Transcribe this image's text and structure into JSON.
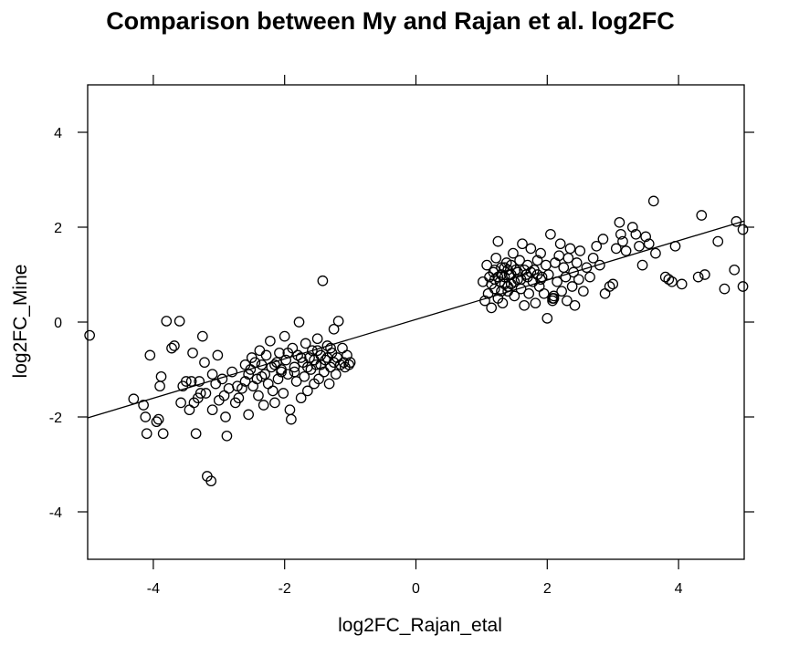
{
  "chart_data": {
    "type": "scatter",
    "title": "Comparison between My and Rajan et al. log2FC",
    "xlabel": "log2FC_Rajan_etal",
    "ylabel": "log2FC_Mine",
    "xlim": [
      -5,
      5
    ],
    "ylim": [
      -5,
      5
    ],
    "xticks": [
      -4,
      -2,
      0,
      2,
      4
    ],
    "yticks": [
      -4,
      -2,
      0,
      2,
      4
    ],
    "grid": false,
    "legend": null,
    "marker": "open-circle",
    "regression_line": {
      "slope": 0.415,
      "intercept": 0.055,
      "x_range": [
        -5,
        5
      ]
    },
    "points": [
      [
        -4.97,
        -0.28
      ],
      [
        -4.3,
        -1.62
      ],
      [
        -4.15,
        -1.75
      ],
      [
        -4.12,
        -2.0
      ],
      [
        -4.1,
        -2.35
      ],
      [
        -4.05,
        -0.7
      ],
      [
        -3.95,
        -2.1
      ],
      [
        -3.92,
        -2.05
      ],
      [
        -3.9,
        -1.35
      ],
      [
        -3.88,
        -1.15
      ],
      [
        -3.85,
        -2.35
      ],
      [
        -3.8,
        0.02
      ],
      [
        -3.72,
        -0.55
      ],
      [
        -3.68,
        -0.5
      ],
      [
        -3.6,
        0.02
      ],
      [
        -3.58,
        -1.7
      ],
      [
        -3.55,
        -1.35
      ],
      [
        -3.5,
        -1.25
      ],
      [
        -3.45,
        -1.85
      ],
      [
        -3.42,
        -1.25
      ],
      [
        -3.4,
        -0.65
      ],
      [
        -3.38,
        -1.7
      ],
      [
        -3.35,
        -2.35
      ],
      [
        -3.32,
        -1.6
      ],
      [
        -3.3,
        -1.25
      ],
      [
        -3.28,
        -1.5
      ],
      [
        -3.25,
        -0.3
      ],
      [
        -3.22,
        -0.85
      ],
      [
        -3.2,
        -1.5
      ],
      [
        -3.18,
        -3.25
      ],
      [
        -3.12,
        -3.35
      ],
      [
        -3.1,
        -1.85
      ],
      [
        -3.1,
        -1.1
      ],
      [
        -3.05,
        -1.3
      ],
      [
        -3.02,
        -0.7
      ],
      [
        -3.0,
        -1.65
      ],
      [
        -2.95,
        -1.2
      ],
      [
        -2.92,
        -1.55
      ],
      [
        -2.9,
        -2.0
      ],
      [
        -2.88,
        -2.4
      ],
      [
        -2.85,
        -1.4
      ],
      [
        -2.8,
        -1.05
      ],
      [
        -2.75,
        -1.7
      ],
      [
        -2.72,
        -1.35
      ],
      [
        -2.7,
        -1.6
      ],
      [
        -2.65,
        -1.4
      ],
      [
        -2.6,
        -1.25
      ],
      [
        -2.55,
        -1.95
      ],
      [
        -2.52,
        -1.0
      ],
      [
        -2.5,
        -0.75
      ],
      [
        -2.48,
        -1.35
      ],
      [
        -2.45,
        -0.85
      ],
      [
        -2.42,
        -1.2
      ],
      [
        -2.4,
        -1.55
      ],
      [
        -2.38,
        -0.6
      ],
      [
        -2.35,
        -0.9
      ],
      [
        -2.32,
        -1.75
      ],
      [
        -2.3,
        -1.1
      ],
      [
        -2.28,
        -0.7
      ],
      [
        -2.25,
        -1.3
      ],
      [
        -2.22,
        -0.4
      ],
      [
        -2.2,
        -0.95
      ],
      [
        -2.18,
        -1.45
      ],
      [
        -2.15,
        -1.7
      ],
      [
        -2.12,
        -0.85
      ],
      [
        -2.1,
        -1.2
      ],
      [
        -2.08,
        -0.65
      ],
      [
        -2.05,
        -1.0
      ],
      [
        -2.02,
        -1.5
      ],
      [
        -2.0,
        -0.3
      ],
      [
        -1.98,
        -0.8
      ],
      [
        -1.95,
        -1.1
      ],
      [
        -1.92,
        -1.85
      ],
      [
        -1.9,
        -2.05
      ],
      [
        -1.88,
        -0.55
      ],
      [
        -1.85,
        -0.95
      ],
      [
        -1.82,
        -1.25
      ],
      [
        -1.8,
        -0.7
      ],
      [
        -1.78,
        0.0
      ],
      [
        -1.75,
        -1.6
      ],
      [
        -1.72,
        -0.85
      ],
      [
        -1.7,
        -1.15
      ],
      [
        -1.68,
        -0.45
      ],
      [
        -1.65,
        -1.45
      ],
      [
        -1.62,
        -0.75
      ],
      [
        -1.6,
        -1.0
      ],
      [
        -1.58,
        -0.6
      ],
      [
        -1.55,
        -1.3
      ],
      [
        -1.52,
        -0.9
      ],
      [
        -1.5,
        -0.35
      ],
      [
        -1.48,
        -1.2
      ],
      [
        -1.45,
        -0.7
      ],
      [
        -1.42,
        0.87
      ],
      [
        -1.4,
        -1.05
      ],
      [
        -1.38,
        -0.8
      ],
      [
        -1.35,
        -0.5
      ],
      [
        -1.32,
        -1.3
      ],
      [
        -1.3,
        -0.95
      ],
      [
        -1.28,
        -0.65
      ],
      [
        -1.25,
        -0.15
      ],
      [
        -1.22,
        -1.1
      ],
      [
        -1.2,
        -0.75
      ],
      [
        -1.18,
        0.02
      ],
      [
        -1.15,
        -0.9
      ],
      [
        -1.12,
        -0.55
      ],
      [
        -1.1,
        -0.85
      ],
      [
        -1.08,
        -0.95
      ],
      [
        -1.05,
        -0.7
      ],
      [
        -1.02,
        -0.9
      ],
      [
        -1.0,
        -0.85
      ],
      [
        -2.6,
        -0.9
      ],
      [
        -2.55,
        -1.1
      ],
      [
        -2.35,
        -1.15
      ],
      [
        -2.15,
        -0.9
      ],
      [
        -1.95,
        -0.65
      ],
      [
        -1.75,
        -0.75
      ],
      [
        -1.55,
        -0.8
      ],
      [
        -1.45,
        -0.9
      ],
      [
        -1.35,
        -0.75
      ],
      [
        -1.25,
        -0.85
      ],
      [
        -1.65,
        -0.95
      ],
      [
        -1.85,
        -1.05
      ],
      [
        -2.05,
        -1.05
      ],
      [
        -1.5,
        -0.6
      ],
      [
        -1.3,
        -0.55
      ],
      [
        1.02,
        0.85
      ],
      [
        1.05,
        0.45
      ],
      [
        1.08,
        1.2
      ],
      [
        1.1,
        0.6
      ],
      [
        1.12,
        0.95
      ],
      [
        1.15,
        0.3
      ],
      [
        1.18,
        1.05
      ],
      [
        1.2,
        0.7
      ],
      [
        1.22,
        1.35
      ],
      [
        1.25,
        1.7
      ],
      [
        1.25,
        0.5
      ],
      [
        1.28,
        0.85
      ],
      [
        1.3,
        1.15
      ],
      [
        1.32,
        0.4
      ],
      [
        1.35,
        0.95
      ],
      [
        1.38,
        1.25
      ],
      [
        1.4,
        0.65
      ],
      [
        1.42,
        1.0
      ],
      [
        1.45,
        0.8
      ],
      [
        1.48,
        1.45
      ],
      [
        1.5,
        0.55
      ],
      [
        1.52,
        1.1
      ],
      [
        1.55,
        0.9
      ],
      [
        1.58,
        1.3
      ],
      [
        1.6,
        0.7
      ],
      [
        1.62,
        1.65
      ],
      [
        1.65,
        0.35
      ],
      [
        1.68,
        1.0
      ],
      [
        1.7,
        1.2
      ],
      [
        1.72,
        0.6
      ],
      [
        1.75,
        1.55
      ],
      [
        1.78,
        0.85
      ],
      [
        1.8,
        1.1
      ],
      [
        1.82,
        0.4
      ],
      [
        1.85,
        1.3
      ],
      [
        1.88,
        0.75
      ],
      [
        1.9,
        1.45
      ],
      [
        1.92,
        0.95
      ],
      [
        1.95,
        0.6
      ],
      [
        1.98,
        1.2
      ],
      [
        2.0,
        0.08
      ],
      [
        2.02,
        1.0
      ],
      [
        2.05,
        1.85
      ],
      [
        2.08,
        0.5
      ],
      [
        2.1,
        0.5
      ],
      [
        2.12,
        1.25
      ],
      [
        2.15,
        0.85
      ],
      [
        2.18,
        1.4
      ],
      [
        2.2,
        1.65
      ],
      [
        2.22,
        0.65
      ],
      [
        2.25,
        1.15
      ],
      [
        2.28,
        0.95
      ],
      [
        2.3,
        0.45
      ],
      [
        2.32,
        1.35
      ],
      [
        2.35,
        1.55
      ],
      [
        2.38,
        0.75
      ],
      [
        2.4,
        1.05
      ],
      [
        2.42,
        0.35
      ],
      [
        2.45,
        1.25
      ],
      [
        2.48,
        0.9
      ],
      [
        2.5,
        1.5
      ],
      [
        2.55,
        0.65
      ],
      [
        2.6,
        1.15
      ],
      [
        2.65,
        0.95
      ],
      [
        2.7,
        1.35
      ],
      [
        2.75,
        1.6
      ],
      [
        2.8,
        1.2
      ],
      [
        2.85,
        1.75
      ],
      [
        2.88,
        0.6
      ],
      [
        2.95,
        0.75
      ],
      [
        3.0,
        0.8
      ],
      [
        3.05,
        1.55
      ],
      [
        3.1,
        2.1
      ],
      [
        3.12,
        1.85
      ],
      [
        3.15,
        1.7
      ],
      [
        3.2,
        1.5
      ],
      [
        3.3,
        2.0
      ],
      [
        3.35,
        1.85
      ],
      [
        3.4,
        1.6
      ],
      [
        3.45,
        1.2
      ],
      [
        3.5,
        1.8
      ],
      [
        3.55,
        1.65
      ],
      [
        3.62,
        2.55
      ],
      [
        3.65,
        1.45
      ],
      [
        3.95,
        1.6
      ],
      [
        3.8,
        0.95
      ],
      [
        3.85,
        0.9
      ],
      [
        3.9,
        0.85
      ],
      [
        4.05,
        0.8
      ],
      [
        4.3,
        0.95
      ],
      [
        4.35,
        2.25
      ],
      [
        4.4,
        1.0
      ],
      [
        4.6,
        1.7
      ],
      [
        4.7,
        0.7
      ],
      [
        4.85,
        1.1
      ],
      [
        4.88,
        2.12
      ],
      [
        4.98,
        1.95
      ],
      [
        4.98,
        0.75
      ],
      [
        1.2,
        0.9
      ],
      [
        1.3,
        1.0
      ],
      [
        1.35,
        0.8
      ],
      [
        1.4,
        1.1
      ],
      [
        1.45,
        1.0
      ],
      [
        1.5,
        0.85
      ],
      [
        1.35,
        1.15
      ],
      [
        1.25,
        0.95
      ],
      [
        1.55,
        1.05
      ],
      [
        1.6,
        0.9
      ],
      [
        1.4,
        0.75
      ],
      [
        1.3,
        0.65
      ],
      [
        1.15,
        0.8
      ],
      [
        1.2,
        1.1
      ],
      [
        1.45,
        1.2
      ],
      [
        1.65,
        1.1
      ],
      [
        1.7,
        0.95
      ],
      [
        1.75,
        1.05
      ],
      [
        1.85,
        1.0
      ],
      [
        1.9,
        0.9
      ],
      [
        2.1,
        0.55
      ],
      [
        2.08,
        0.45
      ]
    ]
  }
}
